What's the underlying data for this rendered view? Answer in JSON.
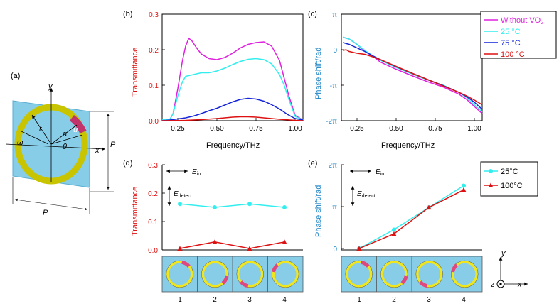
{
  "panel_a": {
    "label": "(a)",
    "axis_y": "y",
    "axis_x": "x",
    "r": "r",
    "alpha": "α",
    "u": "u",
    "theta": "θ",
    "omega": "ω",
    "P_right": "P",
    "P_bottom": "P",
    "colors": {
      "substrate": "#87cde8",
      "ring": "#c8c400",
      "vo2": "#c1336b"
    }
  },
  "chart_data": [
    {
      "panel": "(b)",
      "type": "line",
      "xlabel": "Frequency/THz",
      "ylabel": "Transmittance",
      "xlim": [
        0.15,
        1.05
      ],
      "ylim": [
        0,
        0.3
      ],
      "xticks": [
        "0.25",
        "0.50",
        "0.75",
        "1.00"
      ],
      "yticks": [
        "0.0",
        "0.1",
        "0.2",
        "0.3"
      ],
      "series": [
        {
          "name": "Without VO2",
          "color": "#e020e0",
          "x": [
            0.15,
            0.2,
            0.22,
            0.25,
            0.28,
            0.3,
            0.32,
            0.34,
            0.37,
            0.4,
            0.45,
            0.5,
            0.55,
            0.6,
            0.65,
            0.7,
            0.75,
            0.8,
            0.85,
            0.9,
            0.93,
            0.96,
            1.0,
            1.05
          ],
          "y": [
            0.002,
            0.004,
            0.02,
            0.09,
            0.17,
            0.21,
            0.232,
            0.225,
            0.205,
            0.188,
            0.175,
            0.172,
            0.178,
            0.19,
            0.205,
            0.215,
            0.22,
            0.222,
            0.21,
            0.17,
            0.12,
            0.07,
            0.015,
            0.002
          ]
        },
        {
          "name": "25 °C",
          "color": "#33eeee",
          "x": [
            0.15,
            0.2,
            0.22,
            0.25,
            0.28,
            0.3,
            0.35,
            0.4,
            0.45,
            0.5,
            0.55,
            0.6,
            0.65,
            0.7,
            0.75,
            0.8,
            0.85,
            0.9,
            0.93,
            0.96,
            1.0,
            1.05
          ],
          "y": [
            0.002,
            0.004,
            0.02,
            0.07,
            0.11,
            0.125,
            0.13,
            0.135,
            0.135,
            0.14,
            0.148,
            0.158,
            0.167,
            0.173,
            0.175,
            0.172,
            0.16,
            0.13,
            0.1,
            0.06,
            0.012,
            0.002
          ]
        },
        {
          "name": "75 °C",
          "color": "#1525d8",
          "x": [
            0.15,
            0.2,
            0.25,
            0.3,
            0.35,
            0.4,
            0.45,
            0.5,
            0.55,
            0.6,
            0.65,
            0.7,
            0.75,
            0.8,
            0.85,
            0.9,
            0.95,
            1.0,
            1.05
          ],
          "y": [
            0.0,
            0.002,
            0.005,
            0.008,
            0.013,
            0.02,
            0.028,
            0.035,
            0.044,
            0.053,
            0.06,
            0.063,
            0.061,
            0.055,
            0.045,
            0.033,
            0.018,
            0.006,
            0.002
          ]
        },
        {
          "name": "100 °C",
          "color": "#dd1111",
          "x": [
            0.15,
            0.3,
            0.4,
            0.5,
            0.55,
            0.6,
            0.65,
            0.7,
            0.75,
            0.8,
            0.9,
            1.0,
            1.05
          ],
          "y": [
            0.0,
            0.001,
            0.003,
            0.006,
            0.008,
            0.01,
            0.011,
            0.011,
            0.01,
            0.008,
            0.004,
            0.001,
            0.0
          ]
        }
      ]
    },
    {
      "panel": "(c)",
      "type": "line",
      "xlabel": "Frequency/THz",
      "ylabel": "Phase shift/rad",
      "xlim": [
        0.15,
        1.05
      ],
      "ylim_over_pi": [
        -2,
        1
      ],
      "xticks": [
        "0.25",
        "0.50",
        "0.75",
        "1.00"
      ],
      "yticks": [
        "π",
        "0",
        "-π",
        "-2π"
      ],
      "y_units": "π rad",
      "series": [
        {
          "name": "Without VO2",
          "color": "#e020e0",
          "x": [
            0.16,
            0.2,
            0.25,
            0.3,
            0.35,
            0.4,
            0.5,
            0.6,
            0.7,
            0.8,
            0.9,
            0.95,
            1.0,
            1.05
          ],
          "y_over_pi": [
            0.35,
            0.3,
            0.15,
            -0.05,
            -0.18,
            -0.35,
            -0.55,
            -0.73,
            -0.9,
            -1.05,
            -1.25,
            -1.4,
            -1.6,
            -1.8
          ]
        },
        {
          "name": "25 °C",
          "color": "#33eeee",
          "x": [
            0.16,
            0.2,
            0.25,
            0.3,
            0.35,
            0.4,
            0.5,
            0.6,
            0.7,
            0.8,
            0.9,
            0.95,
            1.0,
            1.05
          ],
          "y_over_pi": [
            0.35,
            0.3,
            0.15,
            -0.02,
            -0.17,
            -0.3,
            -0.5,
            -0.68,
            -0.85,
            -1.0,
            -1.2,
            -1.35,
            -1.55,
            -1.75
          ]
        },
        {
          "name": "75 °C",
          "color": "#1525d8",
          "x": [
            0.16,
            0.2,
            0.25,
            0.3,
            0.35,
            0.4,
            0.5,
            0.6,
            0.7,
            0.8,
            0.9,
            0.95,
            1.0,
            1.05
          ],
          "y_over_pi": [
            0.2,
            0.15,
            0.05,
            -0.05,
            -0.17,
            -0.28,
            -0.48,
            -0.66,
            -0.84,
            -1.01,
            -1.2,
            -1.32,
            -1.48,
            -1.68
          ]
        },
        {
          "name": "100 °C",
          "color": "#dd1111",
          "x": [
            0.16,
            0.18,
            0.2,
            0.25,
            0.3,
            0.35,
            0.4,
            0.5,
            0.6,
            0.7,
            0.8,
            0.9,
            0.95,
            1.0,
            1.05
          ],
          "y_over_pi": [
            -0.02,
            0.0,
            -0.05,
            -0.1,
            -0.13,
            -0.2,
            -0.28,
            -0.47,
            -0.66,
            -0.84,
            -1.02,
            -1.2,
            -1.3,
            -1.42,
            -1.55
          ]
        }
      ],
      "legend": {
        "position": "right",
        "entries": [
          {
            "text": "Without VO",
            "sub": "2",
            "color": "#e020e0"
          },
          {
            "text": "25  °C",
            "sub": "",
            "color": "#33eeee"
          },
          {
            "text": "75  °C",
            "sub": "",
            "color": "#1525d8"
          },
          {
            "text": "100  °C",
            "sub": "",
            "color": "#dd1111"
          }
        ]
      }
    },
    {
      "panel": "(d)",
      "type": "line",
      "ylabel": "Transmittance",
      "categories": [
        "1",
        "2",
        "3",
        "4"
      ],
      "ylim": [
        0,
        0.3
      ],
      "yticks": [
        "0.0",
        "0.1",
        "0.2",
        "0.3"
      ],
      "e_in": "E",
      "e_in_sub": "in",
      "e_detect": "E",
      "e_detect_sub": "detect",
      "series": [
        {
          "name": "25 °C",
          "color": "#33eeee",
          "marker": "circle",
          "values": [
            0.162,
            0.15,
            0.162,
            0.15
          ]
        },
        {
          "name": "100 °C",
          "color": "#dd1111",
          "marker": "triangle",
          "values": [
            0.005,
            0.028,
            0.005,
            0.028
          ]
        }
      ]
    },
    {
      "panel": "(e)",
      "type": "line",
      "ylabel": "Phase shift/rad",
      "categories": [
        "1",
        "2",
        "3",
        "4"
      ],
      "ylim_over_pi": [
        0,
        2
      ],
      "yticks": [
        "2π",
        "π",
        "0"
      ],
      "e_in": "E",
      "e_in_sub": "in",
      "e_detect": "E",
      "e_detect_sub": "detect",
      "series": [
        {
          "name": "25°C",
          "color": "#33eeee",
          "marker": "circle",
          "values_over_pi": [
            0.0,
            0.45,
            0.98,
            1.5
          ]
        },
        {
          "name": "100°C",
          "color": "#dd1111",
          "marker": "triangle",
          "values_over_pi": [
            0.0,
            0.35,
            0.98,
            1.4
          ]
        }
      ],
      "legend": {
        "position": "top-right",
        "entries": [
          {
            "text": "25°C",
            "color": "#33eeee",
            "marker": "circle"
          },
          {
            "text": "100°C",
            "color": "#dd1111",
            "marker": "triangle"
          }
        ]
      }
    }
  ],
  "unit_cells": {
    "arc_start_deg": [
      0,
      90,
      180,
      270
    ],
    "substrate_color": "#87cde8",
    "ring_color": "#f0e61e",
    "vo2_color": "#e0487d"
  },
  "coord": {
    "y": "y",
    "x": "x",
    "z": "z"
  }
}
